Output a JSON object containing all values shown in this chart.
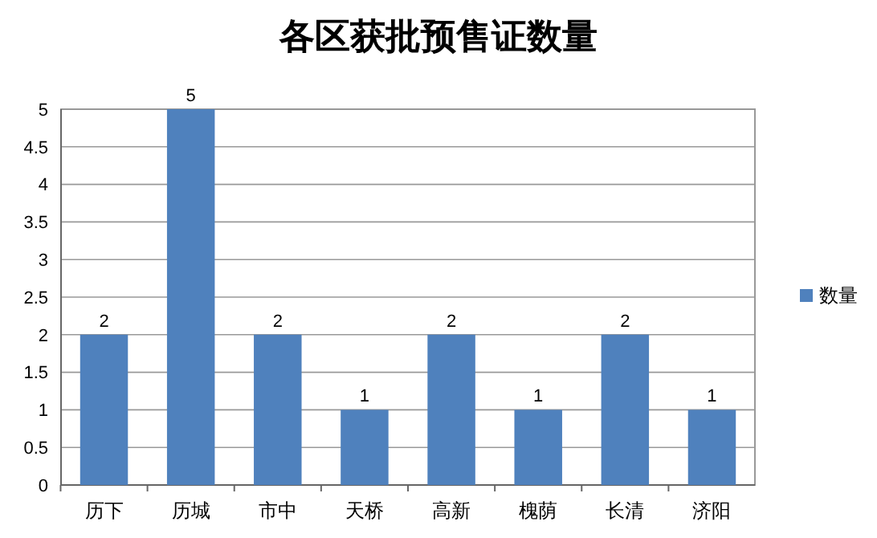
{
  "chart_data": {
    "type": "bar",
    "title": "各区获批预售证数量",
    "categories": [
      "历下",
      "历城",
      "市中",
      "天桥",
      "高新",
      "槐荫",
      "长清",
      "济阳"
    ],
    "series": [
      {
        "name": "数量",
        "color": "#4f81bd",
        "values": [
          2,
          5,
          2,
          1,
          2,
          1,
          2,
          1
        ]
      }
    ],
    "ylim": [
      0,
      5
    ],
    "yticks": [
      0,
      0.5,
      1,
      1.5,
      2,
      2.5,
      3,
      3.5,
      4,
      4.5,
      5
    ],
    "grid": "y",
    "legend": "right",
    "data_labels": true
  }
}
